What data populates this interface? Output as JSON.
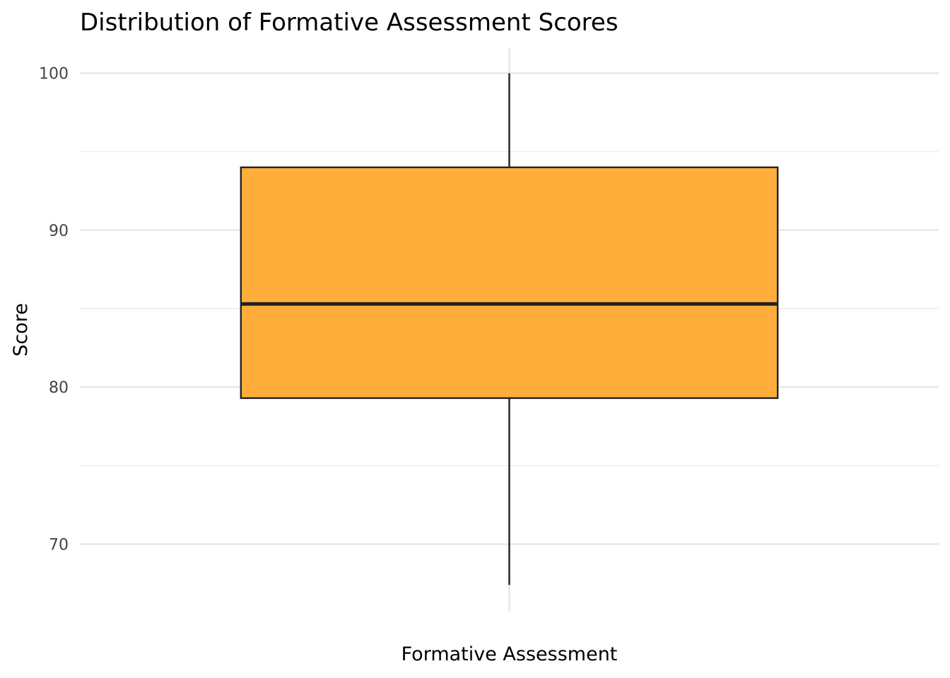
{
  "chart_data": {
    "type": "boxplot",
    "title": "Distribution of Formative Assessment Scores",
    "xlabel": "",
    "ylabel": "Score",
    "categories": [
      "Formative Assessment"
    ],
    "boxes": [
      {
        "category": "Formative Assessment",
        "whisker_low": 67.4,
        "q1": 79.3,
        "median": 85.3,
        "q3": 94.0,
        "whisker_high": 100
      }
    ],
    "ylim": [
      65.7,
      101.6
    ],
    "yticks": [
      70,
      80,
      90,
      100
    ],
    "grid": true,
    "legend": "none",
    "colors": {
      "box_fill": "#FFAE3B",
      "box_stroke": "#222222",
      "median": "#222222",
      "whisker": "#222222"
    }
  }
}
